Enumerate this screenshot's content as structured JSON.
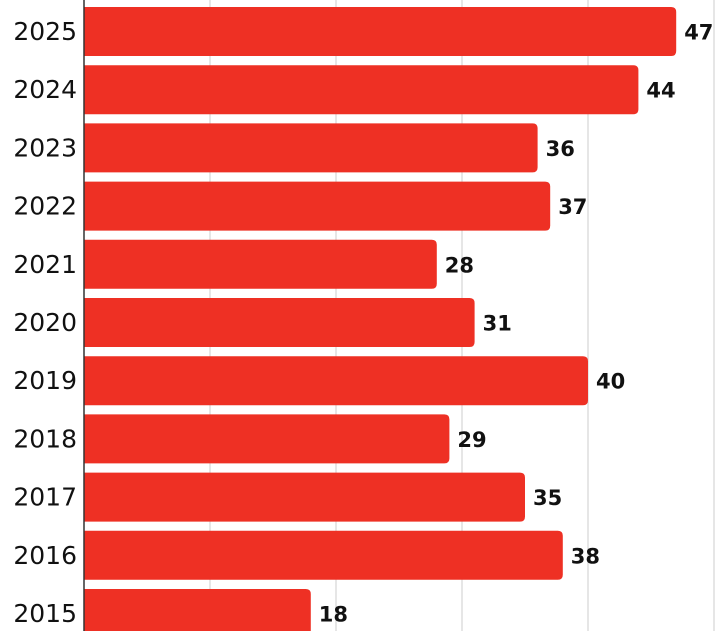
{
  "chart_data": {
    "type": "bar",
    "orientation": "horizontal",
    "title": "",
    "xlabel": "",
    "ylabel": "",
    "categories": [
      "2025",
      "2024",
      "2023",
      "2022",
      "2021",
      "2020",
      "2019",
      "2018",
      "2017",
      "2016",
      "2015"
    ],
    "values": [
      47,
      44,
      36,
      37,
      28,
      31,
      40,
      29,
      35,
      38,
      18
    ],
    "xlim": [
      0,
      50
    ],
    "grid_step": 10,
    "grid": true,
    "data_labels": true,
    "colors": {
      "bar": "#ee3024"
    }
  }
}
